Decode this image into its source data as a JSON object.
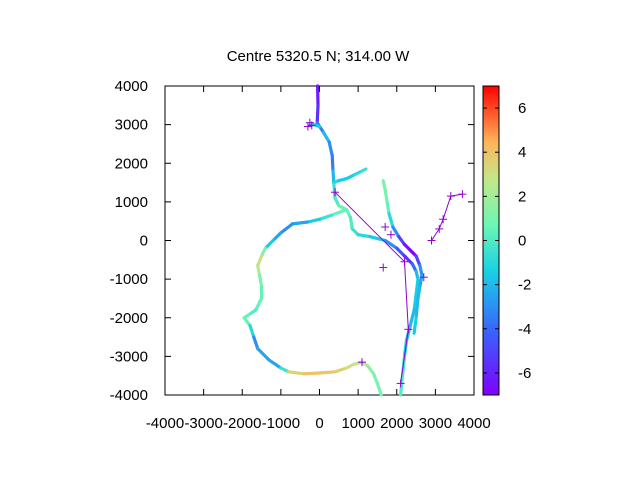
{
  "chart_data": {
    "type": "scatter",
    "title": "Centre 5320.5 N; 314.00  W",
    "xlim": [
      -4000,
      4000
    ],
    "ylim": [
      -4000,
      4000
    ],
    "x_ticks": [
      -4000,
      -3000,
      -2000,
      -1000,
      0,
      1000,
      2000,
      3000,
      4000
    ],
    "x_tick_labels": [
      "-4000",
      "-3000",
      "-2000",
      "-1000",
      "0",
      "1000",
      "2000",
      "3000",
      "4000"
    ],
    "y_ticks": [
      4000,
      3000,
      2000,
      1000,
      0,
      -1000,
      -2000,
      -3000,
      -4000
    ],
    "y_tick_labels": [
      "4000",
      "3000",
      "2000",
      "1000",
      "0",
      "-1000",
      "-2000",
      "-3000",
      "-4000"
    ],
    "colorbar": {
      "range": [
        -7,
        7
      ],
      "ticks": [
        6,
        4,
        2,
        0,
        -2,
        -4,
        -6
      ],
      "tick_labels": [
        "6",
        "4",
        "2",
        "0",
        "-2",
        "-4",
        "-6"
      ],
      "palette": "rainbow"
    },
    "tracks": [
      {
        "points": [
          [
            -50,
            4000,
            -6.5
          ],
          [
            -40,
            3500,
            -6
          ],
          [
            -60,
            3050,
            -5
          ],
          [
            100,
            2800,
            -2
          ],
          [
            250,
            2550,
            -2
          ],
          [
            330,
            2200,
            -4
          ],
          [
            350,
            1800,
            -3
          ],
          [
            370,
            1500,
            -1
          ],
          [
            400,
            1100,
            0
          ],
          [
            500,
            900,
            0
          ],
          [
            700,
            800,
            1
          ]
        ]
      },
      {
        "points": [
          [
            700,
            800,
            1
          ],
          [
            300,
            650,
            0
          ],
          [
            0,
            550,
            -1
          ],
          [
            -300,
            480,
            -2
          ],
          [
            -700,
            430,
            -3
          ],
          [
            -1000,
            200,
            -3
          ],
          [
            -1200,
            0,
            -2
          ],
          [
            -1400,
            -200,
            -1
          ],
          [
            -1500,
            -400,
            3
          ],
          [
            -1600,
            -650,
            3
          ],
          [
            -1550,
            -900,
            2
          ],
          [
            -1500,
            -1200,
            0
          ],
          [
            -1500,
            -1500,
            1
          ],
          [
            -1650,
            -1800,
            0
          ],
          [
            -1800,
            -1900,
            0
          ],
          [
            -1950,
            -2000,
            1
          ],
          [
            -1800,
            -2200,
            0
          ],
          [
            -1700,
            -2500,
            -2
          ],
          [
            -1600,
            -2800,
            -4
          ],
          [
            -1300,
            -3100,
            -1
          ],
          [
            -1000,
            -3300,
            -4
          ],
          [
            -800,
            -3400,
            3
          ],
          [
            -400,
            -3450,
            4
          ],
          [
            0,
            -3430,
            4
          ],
          [
            400,
            -3400,
            4
          ],
          [
            700,
            -3300,
            3
          ],
          [
            900,
            -3200,
            3
          ],
          [
            1100,
            -3150,
            3
          ],
          [
            1250,
            -3250,
            2
          ],
          [
            1400,
            -3450,
            1
          ],
          [
            1500,
            -3700,
            1
          ],
          [
            1600,
            -4000,
            1
          ]
        ]
      },
      {
        "points": [
          [
            700,
            800,
            1
          ],
          [
            800,
            600,
            0
          ],
          [
            850,
            300,
            0
          ],
          [
            1000,
            150,
            -1
          ],
          [
            1300,
            100,
            -1
          ],
          [
            1700,
            0,
            -2
          ],
          [
            2000,
            -200,
            -4
          ],
          [
            2200,
            -400,
            -5
          ],
          [
            2400,
            -600,
            -6
          ],
          [
            2500,
            -800,
            -2
          ],
          [
            2550,
            -1000,
            -2
          ],
          [
            2500,
            -1400,
            -1
          ],
          [
            2450,
            -1800,
            -2
          ],
          [
            2350,
            -2200,
            -2
          ],
          [
            2250,
            -2600,
            -2
          ],
          [
            2200,
            -3000,
            -1
          ],
          [
            2150,
            -3500,
            0
          ],
          [
            2100,
            -4000,
            0
          ]
        ]
      },
      {
        "points": [
          [
            1650,
            1550,
            1
          ],
          [
            1700,
            1300,
            1
          ],
          [
            1750,
            1000,
            1
          ],
          [
            1800,
            700,
            0
          ],
          [
            1900,
            350,
            -2
          ],
          [
            2050,
            100,
            -4
          ],
          [
            2200,
            -100,
            -6
          ],
          [
            2350,
            -250,
            -7
          ],
          [
            2500,
            -400,
            -7
          ],
          [
            2600,
            -650,
            -3
          ],
          [
            2650,
            -900,
            -3
          ],
          [
            2600,
            -1200,
            -2
          ],
          [
            2550,
            -1500,
            -2
          ],
          [
            2500,
            -2000,
            -2
          ],
          [
            2450,
            -2400,
            -1
          ]
        ]
      },
      {
        "points": [
          [
            370,
            1500,
            -1
          ],
          [
            500,
            1550,
            -1
          ],
          [
            700,
            1600,
            -2
          ],
          [
            900,
            1700,
            -1
          ],
          [
            1100,
            1800,
            -1
          ],
          [
            1200,
            1850,
            0
          ]
        ]
      },
      {
        "points": [
          [
            -250,
            2980,
            -1
          ],
          [
            -150,
            3000,
            -1
          ],
          [
            0,
            2950,
            -2
          ]
        ]
      }
    ],
    "markers": [
      [
        -300,
        2950
      ],
      [
        -200,
        2980
      ],
      [
        -250,
        3050
      ],
      [
        400,
        1250
      ],
      [
        1700,
        350
      ],
      [
        1850,
        150
      ],
      [
        1650,
        -700
      ],
      [
        2200,
        -550
      ],
      [
        2700,
        -950
      ],
      [
        2300,
        -2300
      ],
      [
        2100,
        -3700
      ],
      [
        1100,
        -3150
      ],
      [
        2900,
        0
      ],
      [
        3100,
        300
      ],
      [
        3200,
        550
      ],
      [
        3400,
        1150
      ],
      [
        3700,
        1200
      ]
    ],
    "marker_lines": [
      [
        [
          3700,
          1200
        ],
        [
          3400,
          1150
        ],
        [
          3200,
          550
        ],
        [
          3100,
          300
        ],
        [
          2900,
          0
        ]
      ],
      [
        [
          400,
          1250
        ],
        [
          2200,
          -550
        ],
        [
          2300,
          -2300
        ],
        [
          2100,
          -3700
        ]
      ]
    ]
  }
}
